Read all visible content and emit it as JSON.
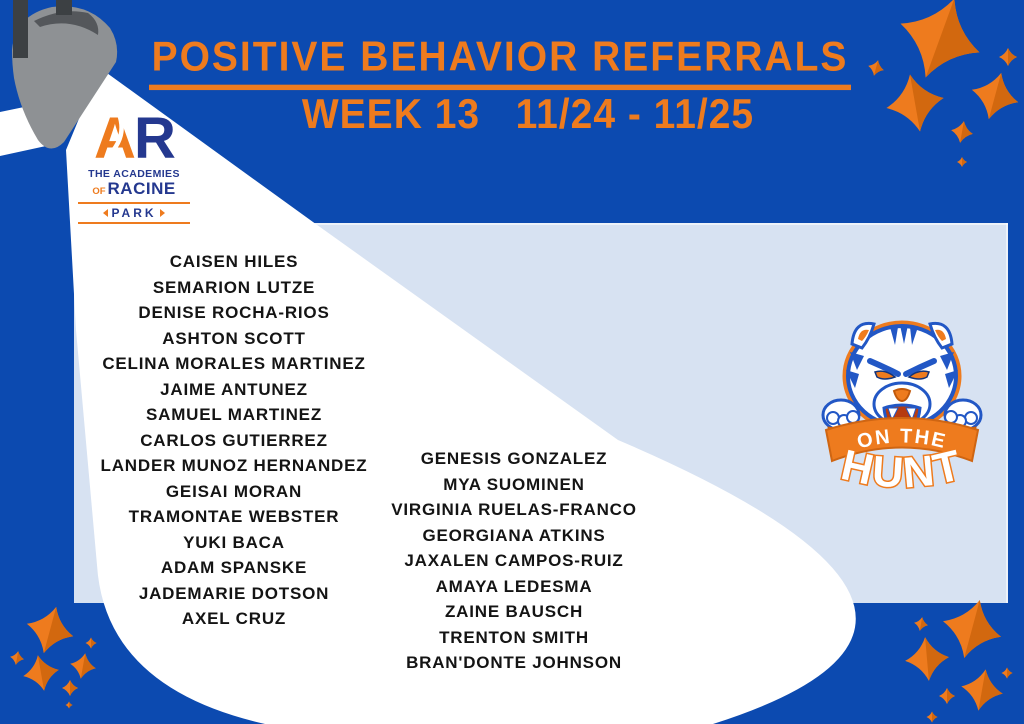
{
  "header": {
    "title_line1": "POSITIVE BEHAVIOR REFERRALS",
    "title_line2": "WEEK 13   11/24 - 11/25"
  },
  "logo": {
    "monogram_a": "A",
    "monogram_r": "R",
    "line1": "THE ACADEMIES",
    "line2_prefix": "OF",
    "line2_name": "RACINE",
    "campus": "PARK"
  },
  "referrals": {
    "left_column": [
      "CAISEN HILES",
      "SEMARION LUTZE",
      "DENISE ROCHA-RIOS",
      "ASHTON SCOTT",
      "CELINA MORALES MARTINEZ",
      "JAIME ANTUNEZ",
      "SAMUEL MARTINEZ",
      "CARLOS GUTIERREZ",
      "LANDER MUNOZ HERNANDEZ",
      "GEISAI MORAN",
      "TRAMONTAE WEBSTER",
      "YUKI BACA",
      "ADAM SPANSKE",
      "JADEMARIE DOTSON",
      "AXEL CRUZ"
    ],
    "right_column": [
      "GENESIS GONZALEZ",
      "MYA SUOMINEN",
      "VIRGINIA RUELAS-FRANCO",
      "GEORGIANA ATKINS",
      "JAXALEN CAMPOS-RUIZ",
      "AMAYA LEDESMA",
      "ZAINE BAUSCH",
      "TRENTON SMITH",
      "BRAN'DONTE JOHNSON"
    ]
  },
  "mascot": {
    "banner_line": "ON THE",
    "main_line": "HUNT"
  },
  "colors": {
    "background_blue": "#0c4ab0",
    "accent_orange": "#ee7b1e",
    "accent_orange_dark": "#d2680f",
    "panel_light_blue": "#d7e2f2",
    "logo_navy": "#24388f",
    "mascot_blue": "#2257c5",
    "name_text": "#141414",
    "beam_white": "#ffffff",
    "fixture_gray": "#8e9194",
    "fixture_dark": "#54575b",
    "bar_dark": "#3c4043"
  }
}
